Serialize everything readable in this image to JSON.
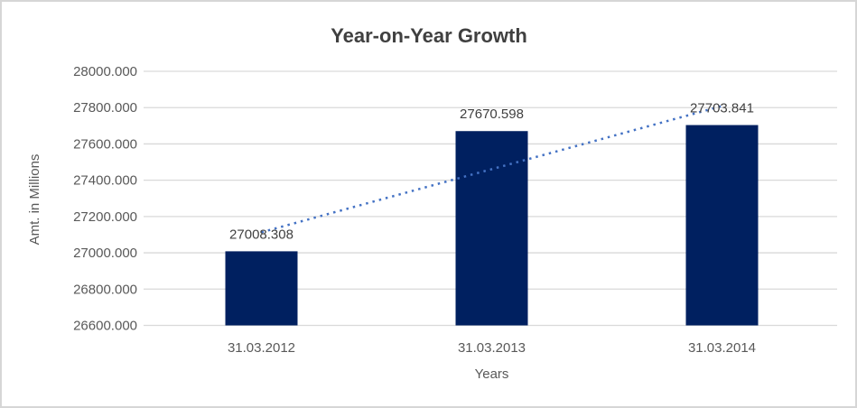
{
  "chart_data": {
    "type": "bar",
    "title": "Year-on-Year Growth",
    "xlabel": "Years",
    "ylabel": "Amt. in Millions",
    "categories": [
      "31.03.2012",
      "31.03.2013",
      "31.03.2014"
    ],
    "values": [
      27008.308,
      27670.598,
      27703.841
    ],
    "data_labels": [
      "27008.308",
      "27670.598",
      "27703.841"
    ],
    "y_ticks": [
      "26600.000",
      "26800.000",
      "27000.000",
      "27200.000",
      "27400.000",
      "27600.000",
      "27800.000",
      "28000.000"
    ],
    "y_tick_values": [
      26600,
      26800,
      27000,
      27200,
      27400,
      27600,
      27800,
      28000
    ],
    "ylim": [
      26600,
      28000
    ],
    "grid": true,
    "legend_position": "none",
    "trendline": {
      "type": "linear",
      "style": "dotted"
    },
    "colors": {
      "bar": "#002060",
      "trendline": "#4472C4",
      "gridline": "#d9d9d9",
      "axis_line": "#d9d9d9",
      "title_text": "#404040",
      "tick_text": "#595959",
      "data_label_text": "#404040",
      "axis_title_text": "#595959",
      "frame_border": "#d6d6d6",
      "background": "#ffffff"
    }
  }
}
